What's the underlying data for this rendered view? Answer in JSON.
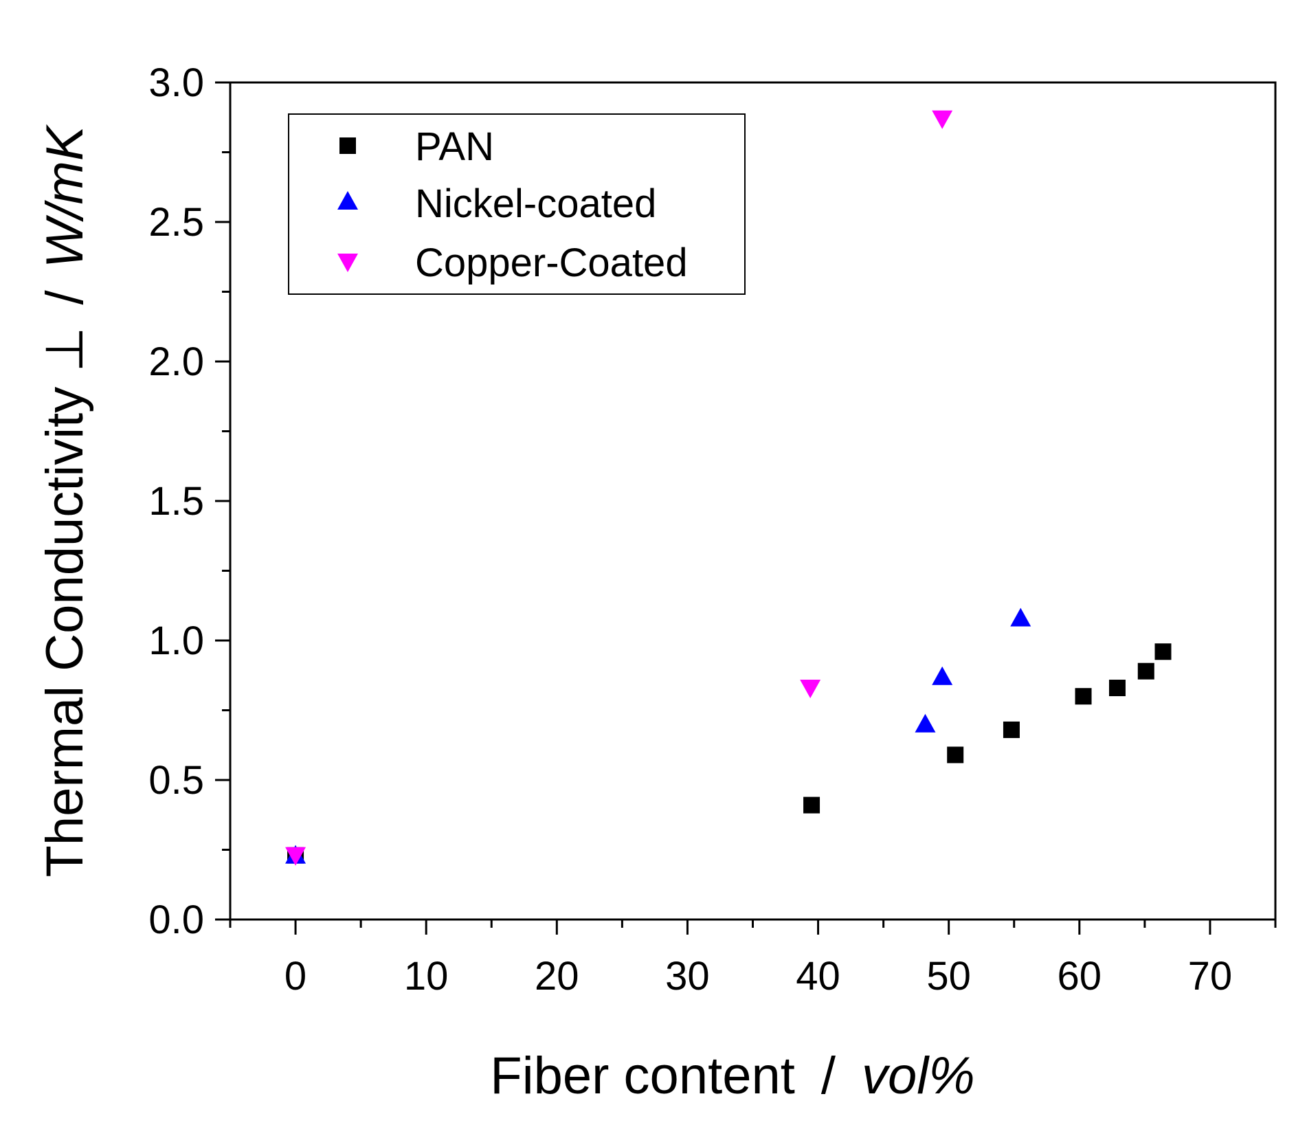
{
  "chart_data": {
    "type": "scatter",
    "title": "",
    "xlabel_main": "Fiber content",
    "xlabel_sep": "/",
    "xlabel_unit": "vol%",
    "ylabel_main": "Thermal Conductivity ⊥",
    "ylabel_sep": "/",
    "ylabel_unit": "W/mK",
    "xlim": [
      -5,
      75
    ],
    "ylim": [
      0,
      3.0
    ],
    "x_ticks": [
      0,
      10,
      20,
      30,
      40,
      50,
      60,
      70
    ],
    "x_tick_labels": [
      "0",
      "10",
      "20",
      "30",
      "40",
      "50",
      "60",
      "70"
    ],
    "y_ticks": [
      0,
      0.5,
      1.0,
      1.5,
      2.0,
      2.5,
      3.0
    ],
    "y_tick_labels": [
      "0.0",
      "0.5",
      "1.0",
      "1.5",
      "2.0",
      "2.5",
      "3.0"
    ],
    "grid": false,
    "legend_position": "top-left",
    "series": [
      {
        "name": "PAN",
        "marker": "square",
        "color": "#000000",
        "points": [
          {
            "x": 0,
            "y": 0.23
          },
          {
            "x": 39.5,
            "y": 0.41
          },
          {
            "x": 50.5,
            "y": 0.59
          },
          {
            "x": 54.8,
            "y": 0.68
          },
          {
            "x": 60.3,
            "y": 0.8
          },
          {
            "x": 62.9,
            "y": 0.83
          },
          {
            "x": 65.1,
            "y": 0.89
          },
          {
            "x": 66.4,
            "y": 0.96
          }
        ]
      },
      {
        "name": "Nickel-coated",
        "marker": "triangle-up",
        "color": "#0000ff",
        "points": [
          {
            "x": 0,
            "y": 0.23
          },
          {
            "x": 48.2,
            "y": 0.7
          },
          {
            "x": 49.5,
            "y": 0.87
          },
          {
            "x": 55.5,
            "y": 1.08
          }
        ]
      },
      {
        "name": "Copper-Coated",
        "marker": "triangle-down",
        "color": "#ff00ff",
        "points": [
          {
            "x": 0,
            "y": 0.23
          },
          {
            "x": 39.4,
            "y": 0.83
          },
          {
            "x": 49.5,
            "y": 2.87
          }
        ]
      }
    ]
  }
}
